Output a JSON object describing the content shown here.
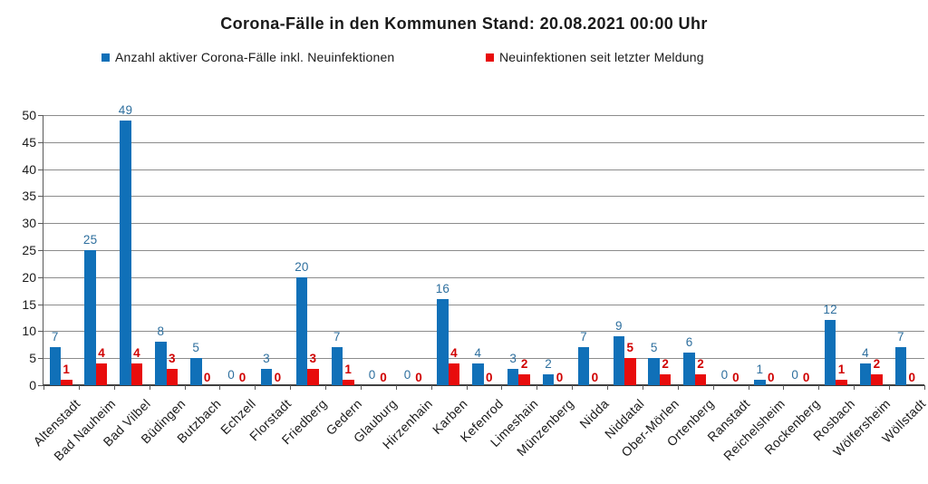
{
  "title": "Corona-Fälle in den Kommunen Stand: 20.08.2021 00:00 Uhr",
  "legend": {
    "items": [
      {
        "label": "Anzahl aktiver Corona-Fälle inkl. Neuinfektionen",
        "color": "#1070b8"
      },
      {
        "label": "Neuinfektionen seit letzter Meldung",
        "color": "#e80c0c"
      }
    ]
  },
  "colors": {
    "bar_blue": "#1070b8",
    "bar_red": "#e80c0c",
    "label_blue": "#2e6f9e",
    "label_red": "#d00000",
    "gridline": "#8c8c8c",
    "axis": "#404040",
    "text": "#1a1a1a"
  },
  "chart_data": {
    "type": "bar",
    "title": "Corona-Fälle in den Kommunen Stand: 20.08.2021 00:00 Uhr",
    "categories": [
      "Altenstadt",
      "Bad Nauheim",
      "Bad Vilbel",
      "Büdingen",
      "Butzbach",
      "Echzell",
      "Florstadt",
      "Friedberg",
      "Gedern",
      "Glauburg",
      "Hirzenhain",
      "Karben",
      "Kefenrod",
      "Limeshain",
      "Münzenberg",
      "Nidda",
      "Niddatal",
      "Ober-Mörlen",
      "Ortenberg",
      "Ranstadt",
      "Reichelsheim",
      "Rockenberg",
      "Rosbach",
      "Wölfersheim",
      "Wöllstadt"
    ],
    "series": [
      {
        "name": "Anzahl aktiver Corona-Fälle inkl. Neuinfektionen",
        "color": "#1070b8",
        "label_color": "#2e6f9e",
        "values": [
          7,
          25,
          49,
          8,
          5,
          0,
          3,
          20,
          7,
          0,
          0,
          16,
          4,
          3,
          2,
          7,
          9,
          5,
          6,
          0,
          1,
          0,
          12,
          4,
          7
        ]
      },
      {
        "name": "Neuinfektionen seit letzter Meldung",
        "color": "#e80c0c",
        "label_color": "#d00000",
        "values": [
          1,
          4,
          4,
          3,
          0,
          0,
          0,
          3,
          1,
          0,
          0,
          4,
          0,
          2,
          0,
          0,
          5,
          2,
          2,
          0,
          0,
          0,
          1,
          2,
          0
        ]
      }
    ],
    "xlabel": "",
    "ylabel": "",
    "ylim": [
      0,
      50
    ],
    "yticks": [
      0,
      5,
      10,
      15,
      20,
      25,
      30,
      35,
      40,
      45,
      50
    ],
    "grid": true,
    "legend_position": "top",
    "bar_value_labels": true
  }
}
